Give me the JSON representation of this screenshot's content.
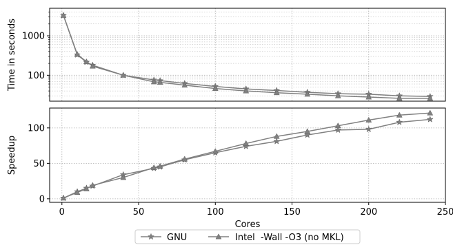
{
  "chart_data": [
    {
      "type": "line",
      "ylabel": "Time in seconds",
      "xlabel": "",
      "xlim": [
        -8,
        250
      ],
      "ylim": [
        22,
        5000
      ],
      "yscale": "log",
      "yticks": [
        100,
        1000
      ],
      "ytick_labels": [
        "100",
        "1000"
      ],
      "grid": true,
      "series": [
        {
          "name": "GNU",
          "marker": "star",
          "color": "#808080",
          "x": [
            1,
            10,
            16,
            20,
            40,
            60,
            64,
            80,
            100,
            120,
            140,
            160,
            180,
            200,
            220,
            240
          ],
          "values": [
            3300,
            330,
            215,
            180,
            100,
            76,
            73,
            62,
            52,
            45,
            41,
            37,
            34,
            33,
            30,
            29
          ]
        },
        {
          "name": "Intel  -Wall -O3 (no MKL)",
          "marker": "triangle",
          "color": "#808080",
          "x": [
            1,
            10,
            16,
            20,
            40,
            60,
            64,
            80,
            100,
            120,
            140,
            160,
            180,
            200,
            220,
            240
          ],
          "values": [
            3300,
            340,
            220,
            170,
            100,
            68,
            66,
            56,
            46,
            40,
            36,
            33,
            30,
            28,
            26,
            26
          ]
        }
      ]
    },
    {
      "type": "line",
      "ylabel": "Speedup",
      "xlabel": "Cores",
      "xlim": [
        -8,
        250
      ],
      "xticks": [
        0,
        50,
        100,
        150,
        200,
        250
      ],
      "xtick_labels": [
        "0",
        "50",
        "100",
        "150",
        "200",
        "250"
      ],
      "ylim": [
        -5,
        128
      ],
      "yticks": [
        0,
        50,
        100
      ],
      "ytick_labels": [
        "0",
        "50",
        "100"
      ],
      "grid": true,
      "series": [
        {
          "name": "GNU",
          "marker": "star",
          "color": "#808080",
          "x": [
            1,
            10,
            16,
            20,
            40,
            60,
            64,
            80,
            100,
            120,
            140,
            160,
            180,
            200,
            220,
            240
          ],
          "values": [
            1,
            10,
            15,
            18,
            34,
            43,
            45,
            55,
            65,
            74,
            81,
            90,
            97,
            98,
            108,
            112
          ]
        },
        {
          "name": "Intel  -Wall -O3 (no MKL)",
          "marker": "triangle",
          "color": "#808080",
          "x": [
            1,
            10,
            16,
            20,
            40,
            60,
            64,
            80,
            100,
            120,
            140,
            160,
            180,
            200,
            220,
            240
          ],
          "values": [
            1,
            9,
            14,
            19,
            30,
            44,
            46,
            56,
            67,
            78,
            88,
            95,
            103,
            111,
            118,
            121
          ]
        }
      ]
    }
  ],
  "legend": {
    "placement": "bottom-center",
    "entries": [
      "GNU",
      "Intel  -Wall -O3 (no MKL)"
    ]
  }
}
